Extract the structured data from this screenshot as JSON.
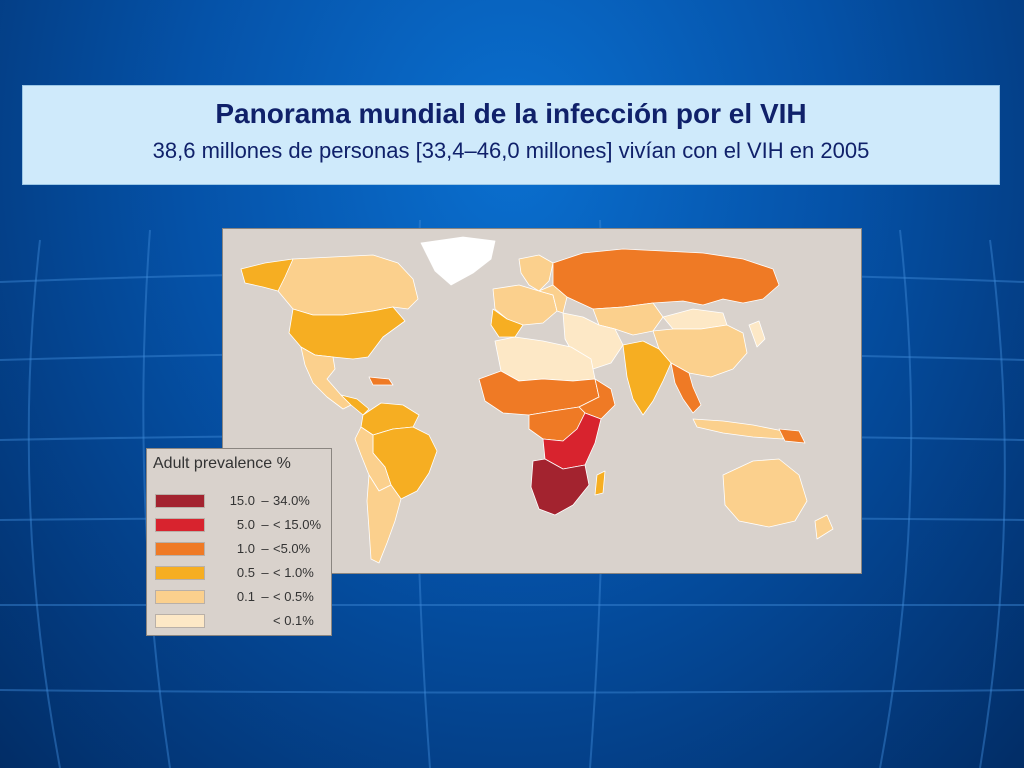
{
  "slide": {
    "title": "Panorama mundial de la infección por el VIH",
    "subtitle": "38,6 millones de personas [33,4–46,0 millones] vivían con el VIH en 2005"
  },
  "legend": {
    "title": "Adult prevalence %",
    "items": [
      {
        "low": "15.0",
        "sep": "–",
        "high": "34.0%",
        "color": "#a3232f"
      },
      {
        "low": "5.0",
        "sep": "–",
        "high": "< 15.0%",
        "color": "#d8232e"
      },
      {
        "low": "1.0",
        "sep": "–",
        "high": "<5.0%",
        "color": "#ef7a25"
      },
      {
        "low": "0.5",
        "sep": "–",
        "high": "< 1.0%",
        "color": "#f6ae22"
      },
      {
        "low": "0.1",
        "sep": "–",
        "high": "< 0.5%",
        "color": "#fbd08d"
      },
      {
        "low": "",
        "sep": "",
        "high": "< 0.1%",
        "color": "#fde8c6"
      }
    ]
  },
  "map": {
    "no_data_color": "#ffffff",
    "ocean_color": "#d9d2cc"
  }
}
